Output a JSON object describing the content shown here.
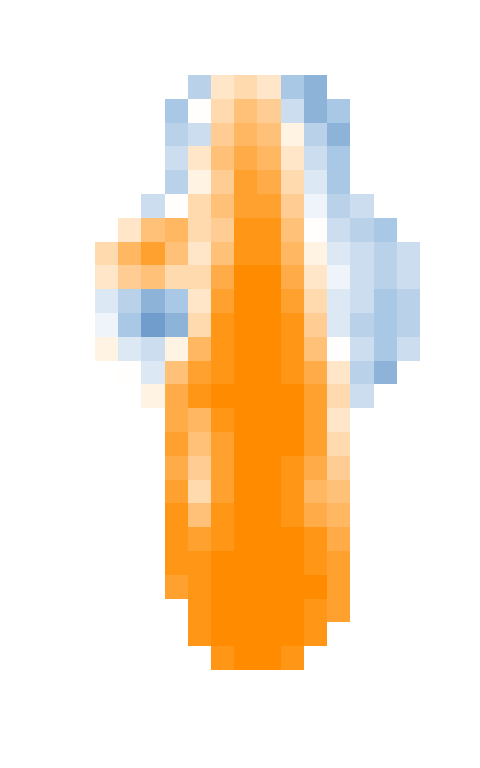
{
  "chart_data": {
    "type": "heatmap",
    "tick_labels": false,
    "color_range": [
      -1,
      1
    ],
    "cells": [
      [
        null,
        null,
        null,
        null,
        -0.4,
        0.2,
        0.3,
        0.2,
        -0.5,
        -0.6,
        null,
        null,
        null,
        null
      ],
      [
        null,
        null,
        null,
        -0.5,
        0.0,
        0.3,
        0.5,
        0.4,
        -0.3,
        -0.6,
        -0.5,
        null,
        null,
        null
      ],
      [
        null,
        null,
        null,
        -0.4,
        -0.3,
        0.4,
        0.6,
        0.5,
        0.1,
        -0.4,
        -0.6,
        null,
        null,
        null
      ],
      [
        null,
        null,
        null,
        -0.3,
        0.2,
        0.5,
        0.7,
        0.6,
        0.2,
        -0.3,
        -0.5,
        null,
        null,
        null
      ],
      [
        null,
        null,
        null,
        -0.4,
        0.1,
        0.4,
        0.8,
        0.7,
        0.3,
        -0.2,
        -0.5,
        null,
        null,
        null
      ],
      [
        null,
        null,
        -0.3,
        0.0,
        0.3,
        0.5,
        0.8,
        0.8,
        0.4,
        -0.1,
        -0.4,
        -0.3,
        null,
        null
      ],
      [
        null,
        0.2,
        0.5,
        0.6,
        0.3,
        0.4,
        0.9,
        0.9,
        0.5,
        0.0,
        -0.3,
        -0.4,
        -0.5,
        null
      ],
      [
        0.3,
        0.6,
        0.8,
        0.5,
        0.2,
        0.5,
        0.9,
        0.9,
        0.6,
        0.1,
        -0.2,
        -0.3,
        -0.4,
        -0.3
      ],
      [
        0.2,
        0.4,
        0.5,
        0.3,
        0.3,
        0.7,
        1.0,
        1.0,
        0.7,
        0.2,
        -0.1,
        -0.3,
        -0.4,
        -0.3
      ],
      [
        -0.2,
        -0.4,
        -0.6,
        -0.5,
        0.2,
        0.8,
        1.0,
        1.0,
        0.8,
        0.3,
        -0.2,
        -0.3,
        -0.5,
        -0.4
      ],
      [
        -0.1,
        -0.5,
        -0.7,
        -0.6,
        0.3,
        0.9,
        1.0,
        1.0,
        0.9,
        0.4,
        -0.2,
        -0.4,
        -0.5,
        -0.4
      ],
      [
        0.1,
        -0.2,
        -0.3,
        0.1,
        0.6,
        0.9,
        1.0,
        1.0,
        0.9,
        0.5,
        0.0,
        -0.3,
        -0.5,
        -0.3
      ],
      [
        null,
        0.0,
        -0.2,
        0.5,
        0.8,
        0.9,
        1.0,
        1.0,
        0.9,
        0.7,
        0.2,
        -0.4,
        -0.6,
        null
      ],
      [
        null,
        null,
        0.1,
        0.7,
        0.9,
        1.0,
        1.0,
        1.0,
        1.0,
        0.8,
        0.3,
        -0.3,
        null,
        null
      ],
      [
        null,
        null,
        null,
        0.7,
        0.6,
        0.9,
        1.0,
        1.0,
        1.0,
        0.8,
        0.2,
        null,
        null,
        null
      ],
      [
        null,
        null,
        null,
        0.8,
        0.5,
        0.8,
        1.0,
        1.0,
        1.0,
        0.8,
        0.3,
        null,
        null,
        null
      ],
      [
        null,
        null,
        null,
        0.7,
        0.4,
        0.8,
        1.0,
        1.0,
        0.9,
        0.7,
        0.4,
        null,
        null,
        null
      ],
      [
        null,
        null,
        null,
        0.8,
        0.3,
        0.8,
        1.0,
        1.0,
        0.9,
        0.6,
        0.5,
        null,
        null,
        null
      ],
      [
        null,
        null,
        null,
        0.9,
        0.5,
        0.9,
        1.0,
        1.0,
        0.9,
        0.7,
        0.6,
        null,
        null,
        null
      ],
      [
        null,
        null,
        null,
        0.9,
        0.8,
        0.9,
        1.0,
        1.0,
        1.0,
        0.9,
        0.7,
        null,
        null,
        null
      ],
      [
        null,
        null,
        null,
        0.9,
        0.9,
        1.0,
        1.0,
        1.0,
        1.0,
        0.9,
        0.8,
        null,
        null,
        null
      ],
      [
        null,
        null,
        null,
        0.8,
        0.9,
        1.0,
        1.0,
        1.0,
        1.0,
        1.0,
        0.8,
        null,
        null,
        null
      ],
      [
        null,
        null,
        null,
        null,
        0.9,
        1.0,
        1.0,
        1.0,
        1.0,
        0.9,
        0.8,
        null,
        null,
        null
      ],
      [
        null,
        null,
        null,
        null,
        0.9,
        1.0,
        1.0,
        1.0,
        1.0,
        0.9,
        null,
        null,
        null,
        null
      ],
      [
        null,
        null,
        null,
        null,
        null,
        0.9,
        1.0,
        1.0,
        0.9,
        null,
        null,
        null,
        null,
        null
      ]
    ]
  }
}
